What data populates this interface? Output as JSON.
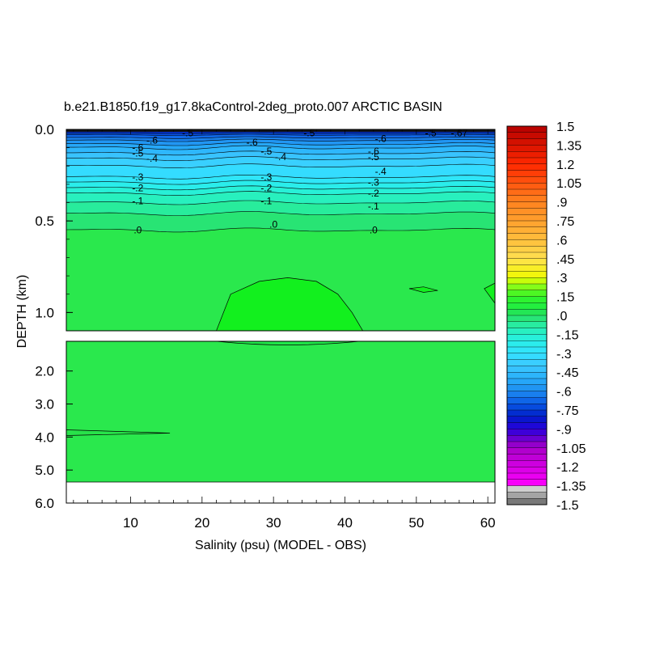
{
  "chart_data": {
    "type": "heatmap",
    "title": "b.e21.B1850.f19_g17.8kaControl-2deg_proto.007 ARCTIC BASIN",
    "xlabel": "Salinity (psu) (MODEL - OBS)",
    "ylabel": "DEPTH (km)",
    "xlim": [
      1,
      61
    ],
    "x_ticks": [
      10,
      20,
      30,
      40,
      50,
      60
    ],
    "upper_panel": {
      "ylim": [
        0.0,
        1.1
      ],
      "y_ticks": [
        "0.0",
        "0.5",
        "1.0"
      ]
    },
    "lower_panel": {
      "ylim": [
        1.1,
        6.0
      ],
      "y_ticks": [
        "2.0",
        "3.0",
        "4.0",
        "5.0",
        "6.0"
      ]
    },
    "contour_levels": [
      {
        "depth": 0.01,
        "value": -0.8
      },
      {
        "depth": 0.02,
        "value": -0.75
      },
      {
        "depth": 0.03,
        "value": -0.7
      },
      {
        "depth": 0.045,
        "value": -0.65
      },
      {
        "depth": 0.06,
        "value": -0.6
      },
      {
        "depth": 0.08,
        "value": -0.55
      },
      {
        "depth": 0.1,
        "value": -0.5
      },
      {
        "depth": 0.13,
        "value": -0.45
      },
      {
        "depth": 0.16,
        "value": -0.4
      },
      {
        "depth": 0.2,
        "value": -0.35
      },
      {
        "depth": 0.26,
        "value": -0.3
      },
      {
        "depth": 0.29,
        "value": -0.25
      },
      {
        "depth": 0.32,
        "value": -0.2
      },
      {
        "depth": 0.35,
        "value": -0.15
      },
      {
        "depth": 0.4,
        "value": -0.1
      },
      {
        "depth": 0.46,
        "value": -0.05
      },
      {
        "depth": 0.55,
        "value": 0.0
      }
    ],
    "contour_labels": [
      {
        "x": 18,
        "depth": 0.02,
        "text": "-.5"
      },
      {
        "x": 13,
        "depth": 0.06,
        "text": "-.6"
      },
      {
        "x": 27,
        "depth": 0.07,
        "text": "-.6"
      },
      {
        "x": 35,
        "depth": 0.02,
        "text": "-.5"
      },
      {
        "x": 45,
        "depth": 0.05,
        "text": "-.6"
      },
      {
        "x": 52,
        "depth": 0.02,
        "text": "-.5"
      },
      {
        "x": 56,
        "depth": 0.02,
        "text": "-.67"
      },
      {
        "x": 11,
        "depth": 0.1,
        "text": "-.6"
      },
      {
        "x": 11,
        "depth": 0.13,
        "text": "-.5"
      },
      {
        "x": 13,
        "depth": 0.16,
        "text": "-.4"
      },
      {
        "x": 29,
        "depth": 0.12,
        "text": "-.5"
      },
      {
        "x": 31,
        "depth": 0.15,
        "text": "-.4"
      },
      {
        "x": 44,
        "depth": 0.12,
        "text": "-.6"
      },
      {
        "x": 44,
        "depth": 0.15,
        "text": "-.5"
      },
      {
        "x": 45,
        "depth": 0.23,
        "text": "-.4"
      },
      {
        "x": 11,
        "depth": 0.26,
        "text": "-.3"
      },
      {
        "x": 11,
        "depth": 0.32,
        "text": "-.2"
      },
      {
        "x": 11,
        "depth": 0.39,
        "text": "-.1"
      },
      {
        "x": 29,
        "depth": 0.26,
        "text": "-.3"
      },
      {
        "x": 29,
        "depth": 0.32,
        "text": "-.2"
      },
      {
        "x": 29,
        "depth": 0.39,
        "text": "-.1"
      },
      {
        "x": 44,
        "depth": 0.29,
        "text": "-.3"
      },
      {
        "x": 44,
        "depth": 0.35,
        "text": "-.2"
      },
      {
        "x": 44,
        "depth": 0.42,
        "text": "-.1"
      },
      {
        "x": 11,
        "depth": 0.55,
        "text": ".0"
      },
      {
        "x": 30,
        "depth": 0.52,
        "text": ".0"
      },
      {
        "x": 44,
        "depth": 0.55,
        "text": ".0"
      }
    ],
    "colorbar": {
      "range": [
        -1.5,
        1.5
      ],
      "step": 0.05,
      "labels": [
        "1.5",
        "1.35",
        "1.2",
        "1.05",
        ".9",
        ".75",
        ".6",
        ".45",
        ".3",
        ".15",
        ".0",
        "-.15",
        "-.3",
        "-.45",
        "-.6",
        "-.75",
        "-.9",
        "-1.05",
        "-1.2",
        "-1.35",
        "-1.5"
      ]
    }
  }
}
